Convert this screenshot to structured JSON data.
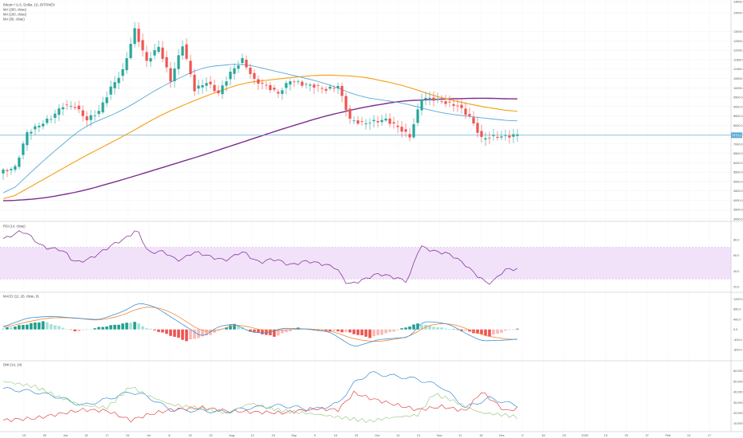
{
  "legend": {
    "symbol": "Bitcoin / U.S. Dollar, 1D, BITFINEX",
    "ma200": "MA (200, close)",
    "ma100": "MA (100, close)",
    "ma50": "MA (50, close)"
  },
  "panes": {
    "rsi": "RSI (14, close)",
    "macd": "MACD (12, 26, close, 9)",
    "dmi": "DMI (14, 14)"
  },
  "colors": {
    "up": "#26a69a",
    "down": "#ef5350",
    "ma50": "#5aa9d6",
    "ma100": "#f5a623",
    "ma200": "#7b2d8e",
    "rsi_line": "#8a3a9c",
    "rsi_band": "#f1e2fa",
    "price_line": "#5aa9d6",
    "macd": "#3f8fd2",
    "signal": "#f08a3a",
    "dmi_plus": "#3f8fd2",
    "dmi_minus": "#e04848",
    "adx": "#9ccc8a"
  },
  "current_price_label": "7470.0",
  "chart_data": [
    {
      "type": "candlestick",
      "y_ticks": [
        "14600.0",
        "14000.0",
        "13000.0",
        "12500.0",
        "12000.0",
        "11500.0",
        "11000.0",
        "10500.0",
        "10000.0",
        "9500.0",
        "9000.0",
        "8500.0",
        "8000.0",
        "7500.0",
        "7000.0",
        "6500.0",
        "6000.0",
        "5500.0",
        "5000.0",
        "4500.0",
        "4000.0",
        "3500.0",
        "3000.0"
      ],
      "ylim": [
        3000,
        14600
      ],
      "x_ticks": [
        "13",
        "20",
        "Jun",
        "10",
        "17",
        "24",
        "Jul",
        "8",
        "15",
        "22",
        "Aug",
        "12",
        "19",
        "Sep",
        "9",
        "16",
        "23",
        "Oct",
        "14",
        "21",
        "Nov",
        "11",
        "18",
        "Dec",
        "9",
        "16",
        "23",
        "2020",
        "13",
        "20",
        "27",
        "Feb",
        "10",
        "17"
      ],
      "knots": [
        [
          0,
          5550
        ],
        [
          3,
          5750
        ],
        [
          6,
          7600
        ],
        [
          9,
          8000
        ],
        [
          12,
          8400
        ],
        [
          15,
          9050
        ],
        [
          18,
          9000
        ],
        [
          21,
          8300
        ],
        [
          24,
          8750
        ],
        [
          27,
          10000
        ],
        [
          30,
          10900
        ],
        [
          33,
          13100
        ],
        [
          36,
          11400
        ],
        [
          39,
          12200
        ],
        [
          42,
          10400
        ],
        [
          45,
          12300
        ],
        [
          48,
          9900
        ],
        [
          51,
          10300
        ],
        [
          54,
          9700
        ],
        [
          57,
          10800
        ],
        [
          60,
          11500
        ],
        [
          63,
          10400
        ],
        [
          66,
          10100
        ],
        [
          69,
          9700
        ],
        [
          72,
          10400
        ],
        [
          75,
          10200
        ],
        [
          78,
          10100
        ],
        [
          81,
          9900
        ],
        [
          84,
          10100
        ],
        [
          87,
          8300
        ],
        [
          90,
          8100
        ],
        [
          93,
          8200
        ],
        [
          96,
          8300
        ],
        [
          99,
          7900
        ],
        [
          102,
          7400
        ],
        [
          105,
          9450
        ],
        [
          108,
          9400
        ],
        [
          111,
          9200
        ],
        [
          114,
          9050
        ],
        [
          117,
          8450
        ],
        [
          120,
          7300
        ],
        [
          123,
          7400
        ],
        [
          126,
          7400
        ],
        [
          129,
          7500
        ]
      ],
      "ma50": [
        [
          0,
          4100
        ],
        [
          10,
          6100
        ],
        [
          20,
          7900
        ],
        [
          30,
          8800
        ],
        [
          40,
          10100
        ],
        [
          50,
          11100
        ],
        [
          60,
          11300
        ],
        [
          70,
          10800
        ],
        [
          80,
          10300
        ],
        [
          90,
          9500
        ],
        [
          100,
          9200
        ],
        [
          110,
          8650
        ],
        [
          120,
          8400
        ],
        [
          129,
          8200
        ]
      ],
      "ma100": [
        [
          0,
          3900
        ],
        [
          10,
          5100
        ],
        [
          20,
          6300
        ],
        [
          30,
          7400
        ],
        [
          40,
          8600
        ],
        [
          50,
          9500
        ],
        [
          60,
          10250
        ],
        [
          70,
          10500
        ],
        [
          80,
          10700
        ],
        [
          90,
          10600
        ],
        [
          100,
          10150
        ],
        [
          110,
          9450
        ],
        [
          120,
          9000
        ],
        [
          129,
          8700
        ]
      ],
      "ma200": [
        [
          0,
          3950
        ],
        [
          10,
          4100
        ],
        [
          20,
          4500
        ],
        [
          30,
          5100
        ],
        [
          40,
          5750
        ],
        [
          50,
          6400
        ],
        [
          60,
          7100
        ],
        [
          70,
          7800
        ],
        [
          80,
          8450
        ],
        [
          90,
          8950
        ],
        [
          100,
          9300
        ],
        [
          110,
          9400
        ],
        [
          120,
          9450
        ],
        [
          129,
          9400
        ]
      ]
    },
    {
      "type": "line",
      "title": "RSI (14, close)",
      "ylim": [
        15,
        100
      ],
      "band": [
        30,
        70
      ],
      "y_ticks": [
        80,
        60,
        40,
        20
      ],
      "knots": [
        [
          0,
          80
        ],
        [
          5,
          92
        ],
        [
          10,
          70
        ],
        [
          15,
          67
        ],
        [
          18,
          50
        ],
        [
          22,
          56
        ],
        [
          28,
          75
        ],
        [
          31,
          82
        ],
        [
          34,
          95
        ],
        [
          36,
          62
        ],
        [
          40,
          66
        ],
        [
          44,
          52
        ],
        [
          48,
          65
        ],
        [
          52,
          58
        ],
        [
          56,
          53
        ],
        [
          60,
          66
        ],
        [
          64,
          50
        ],
        [
          68,
          56
        ],
        [
          72,
          47
        ],
        [
          76,
          53
        ],
        [
          80,
          49
        ],
        [
          84,
          44
        ],
        [
          86,
          22
        ],
        [
          90,
          28
        ],
        [
          94,
          37
        ],
        [
          98,
          32
        ],
        [
          102,
          26
        ],
        [
          104,
          73
        ],
        [
          108,
          65
        ],
        [
          112,
          62
        ],
        [
          116,
          48
        ],
        [
          118,
          38
        ],
        [
          122,
          22
        ],
        [
          126,
          43
        ],
        [
          129,
          42
        ]
      ]
    },
    {
      "type": "bar",
      "title": "MACD (12, 26, close, 9)",
      "ylim": [
        -1200,
        1400
      ],
      "y_ticks": [
        1200,
        800,
        400,
        0,
        -400,
        -800
      ],
      "histogram": [
        [
          0,
          40
        ],
        [
          10,
          320
        ],
        [
          18,
          -80
        ],
        [
          26,
          130
        ],
        [
          33,
          300
        ],
        [
          36,
          60
        ],
        [
          40,
          -130
        ],
        [
          46,
          -450
        ],
        [
          52,
          -200
        ],
        [
          58,
          220
        ],
        [
          62,
          -70
        ],
        [
          68,
          -280
        ],
        [
          74,
          60
        ],
        [
          80,
          -60
        ],
        [
          86,
          -100
        ],
        [
          92,
          -320
        ],
        [
          98,
          -70
        ],
        [
          104,
          230
        ],
        [
          110,
          60
        ],
        [
          116,
          -60
        ],
        [
          122,
          -270
        ],
        [
          126,
          -60
        ],
        [
          129,
          30
        ]
      ],
      "macd": [
        [
          0,
          100
        ],
        [
          6,
          450
        ],
        [
          12,
          520
        ],
        [
          18,
          450
        ],
        [
          24,
          380
        ],
        [
          30,
          700
        ],
        [
          34,
          1050
        ],
        [
          38,
          900
        ],
        [
          42,
          500
        ],
        [
          46,
          100
        ],
        [
          50,
          -300
        ],
        [
          54,
          120
        ],
        [
          58,
          220
        ],
        [
          62,
          -100
        ],
        [
          66,
          -150
        ],
        [
          70,
          50
        ],
        [
          76,
          20
        ],
        [
          82,
          -100
        ],
        [
          88,
          -700
        ],
        [
          94,
          -400
        ],
        [
          98,
          -350
        ],
        [
          102,
          -300
        ],
        [
          105,
          300
        ],
        [
          108,
          300
        ],
        [
          112,
          200
        ],
        [
          116,
          -150
        ],
        [
          120,
          -450
        ],
        [
          126,
          -420
        ],
        [
          129,
          -380
        ]
      ],
      "signal": [
        [
          0,
          60
        ],
        [
          6,
          300
        ],
        [
          12,
          470
        ],
        [
          18,
          450
        ],
        [
          24,
          350
        ],
        [
          30,
          550
        ],
        [
          34,
          850
        ],
        [
          38,
          900
        ],
        [
          42,
          700
        ],
        [
          46,
          300
        ],
        [
          50,
          -100
        ],
        [
          54,
          -50
        ],
        [
          58,
          200
        ],
        [
          62,
          100
        ],
        [
          66,
          -80
        ],
        [
          70,
          -20
        ],
        [
          76,
          30
        ],
        [
          82,
          -40
        ],
        [
          88,
          -380
        ],
        [
          94,
          -500
        ],
        [
          98,
          -380
        ],
        [
          102,
          -300
        ],
        [
          105,
          40
        ],
        [
          108,
          220
        ],
        [
          112,
          240
        ],
        [
          116,
          60
        ],
        [
          120,
          -220
        ],
        [
          126,
          -380
        ],
        [
          129,
          -400
        ]
      ]
    },
    {
      "type": "line",
      "title": "DMI (14, 14)",
      "ylim": [
        3,
        68
      ],
      "y_ticks": [
        60,
        50,
        40,
        30,
        20,
        10
      ],
      "series": [
        {
          "name": "+DI",
          "color": "#3f8fd2",
          "knots": [
            [
              0,
              43
            ],
            [
              8,
              40
            ],
            [
              14,
              35
            ],
            [
              20,
              27
            ],
            [
              26,
              33
            ],
            [
              32,
              40
            ],
            [
              36,
              36
            ],
            [
              42,
              23
            ],
            [
              50,
              22
            ],
            [
              56,
              21
            ],
            [
              62,
              25
            ],
            [
              70,
              27
            ],
            [
              78,
              23
            ],
            [
              84,
              29
            ],
            [
              88,
              48
            ],
            [
              92,
              58
            ],
            [
              96,
              56
            ],
            [
              104,
              52
            ],
            [
              110,
              45
            ],
            [
              116,
              25
            ],
            [
              122,
              34
            ],
            [
              126,
              30
            ],
            [
              129,
              27
            ]
          ]
        },
        {
          "name": "-DI",
          "color": "#e04848",
          "knots": [
            [
              0,
              13
            ],
            [
              8,
              15
            ],
            [
              14,
              19
            ],
            [
              20,
              23
            ],
            [
              26,
              22
            ],
            [
              32,
              13
            ],
            [
              36,
              18
            ],
            [
              42,
              23
            ],
            [
              50,
              25
            ],
            [
              56,
              22
            ],
            [
              62,
              21
            ],
            [
              70,
              20
            ],
            [
              78,
              24
            ],
            [
              84,
              23
            ],
            [
              88,
              39
            ],
            [
              92,
              34
            ],
            [
              96,
              30
            ],
            [
              104,
              23
            ],
            [
              110,
              26
            ],
            [
              116,
              22
            ],
            [
              120,
              40
            ],
            [
              126,
              22
            ],
            [
              129,
              24
            ]
          ]
        },
        {
          "name": "ADX",
          "color": "#9ccc8a",
          "knots": [
            [
              0,
              50
            ],
            [
              8,
              45
            ],
            [
              14,
              35
            ],
            [
              20,
              27
            ],
            [
              26,
              25
            ],
            [
              32,
              45
            ],
            [
              36,
              37
            ],
            [
              42,
              28
            ],
            [
              50,
              24
            ],
            [
              56,
              20
            ],
            [
              62,
              29
            ],
            [
              70,
              22
            ],
            [
              78,
              19
            ],
            [
              84,
              16
            ],
            [
              88,
              14
            ],
            [
              92,
              12
            ],
            [
              96,
              15
            ],
            [
              104,
              18
            ],
            [
              108,
              38
            ],
            [
              112,
              33
            ],
            [
              116,
              26
            ],
            [
              120,
              20
            ],
            [
              126,
              18
            ],
            [
              129,
              16
            ]
          ]
        }
      ]
    }
  ]
}
